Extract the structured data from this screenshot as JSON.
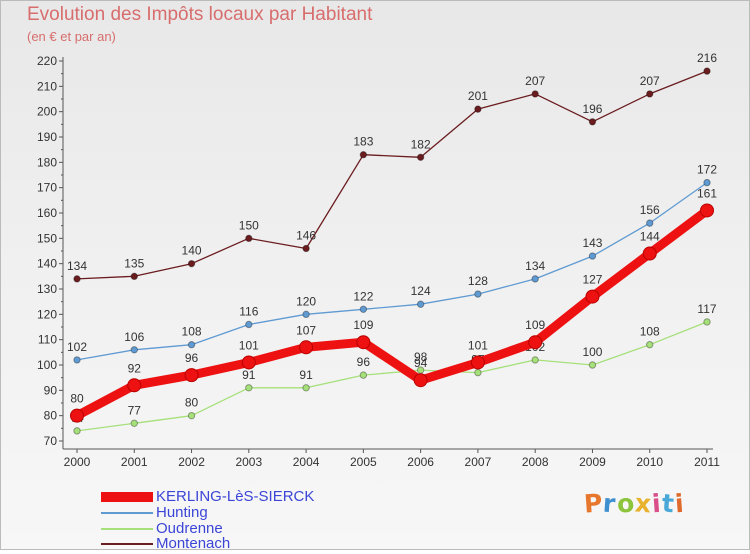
{
  "title": "Evolution des Impôts locaux par Habitant",
  "subtitle": "(en € et par an)",
  "logo_text": "Proxiti",
  "colors": {
    "axis": "#555555",
    "tick_text": "#333333",
    "title": "#d86d6d",
    "legend_text": "#3b45d6"
  },
  "chart_data": {
    "type": "line",
    "title": "Evolution des Impôts locaux par Habitant",
    "subtitle": "(en € et par an)",
    "xlabel": "",
    "ylabel": "",
    "categories": [
      "2000",
      "2001",
      "2002",
      "2003",
      "2004",
      "2005",
      "2006",
      "2007",
      "2008",
      "2009",
      "2010",
      "2011"
    ],
    "ylim": [
      70,
      220
    ],
    "yticks": [
      70,
      80,
      90,
      100,
      110,
      120,
      130,
      140,
      150,
      160,
      170,
      180,
      190,
      200,
      210,
      220
    ],
    "grid": false,
    "legend_position": "bottom-left",
    "series": [
      {
        "name": "Montenach",
        "color": "#6b1c1f",
        "weight": "thin",
        "values": [
          134,
          135,
          140,
          150,
          146,
          183,
          182,
          201,
          207,
          196,
          207,
          216
        ]
      },
      {
        "name": "Hunting",
        "color": "#5f9ad2",
        "weight": "thin",
        "values": [
          102,
          106,
          108,
          116,
          120,
          122,
          124,
          128,
          134,
          143,
          156,
          172
        ]
      },
      {
        "name": "Oudrenne",
        "color": "#a6e07a",
        "weight": "thin",
        "values": [
          74,
          77,
          80,
          91,
          91,
          96,
          98,
          97,
          102,
          100,
          108,
          117
        ]
      },
      {
        "name": "KERLING-LèS-SIERCK",
        "color": "#ee1111",
        "weight": "thick",
        "values": [
          80,
          92,
          96,
          101,
          107,
          109,
          94,
          101,
          109,
          127,
          144,
          161
        ]
      }
    ],
    "legend": [
      {
        "name": "KERLING-LèS-SIERCK",
        "color": "#ee1111",
        "weight": "thick"
      },
      {
        "name": "Hunting",
        "color": "#5f9ad2",
        "weight": "thin"
      },
      {
        "name": "Oudrenne",
        "color": "#a6e07a",
        "weight": "thin"
      },
      {
        "name": "Montenach",
        "color": "#6b1c1f",
        "weight": "thin"
      }
    ]
  }
}
